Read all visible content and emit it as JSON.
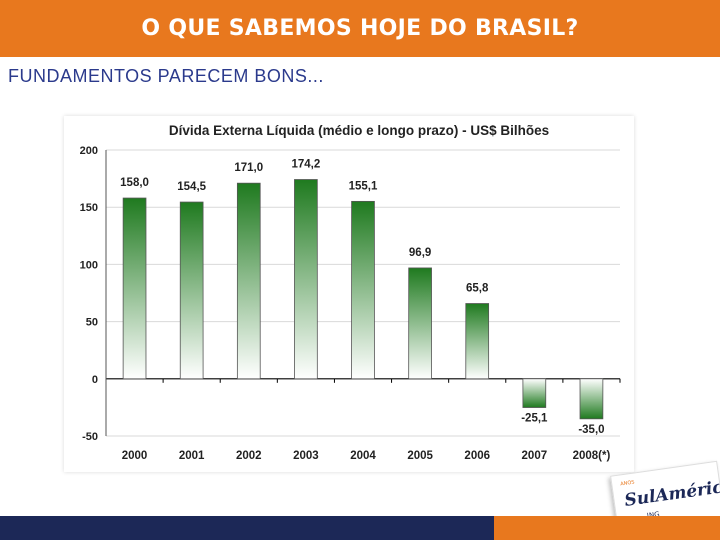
{
  "header": {
    "title": "O QUE SABEMOS HOJE DO BRASIL?"
  },
  "subtitle": "FUNDAMENTOS PARECEM BONS...",
  "colors": {
    "accent_orange": "#e8781e",
    "footer_blue": "#1c2857",
    "bar_green": "#1f7a1f"
  },
  "logo": {
    "small": "ANOS",
    "main": "SulAmérica",
    "sub": "ING"
  },
  "chart_data": {
    "type": "bar",
    "title": "Dívida Externa Líquida (médio e longo prazo) - US$ Bilhões",
    "categories": [
      "2000",
      "2001",
      "2002",
      "2003",
      "2004",
      "2005",
      "2006",
      "2007",
      "2008(*)"
    ],
    "values": [
      158.0,
      154.5,
      171.0,
      174.2,
      155.1,
      96.9,
      65.8,
      -25.1,
      -35.0
    ],
    "value_labels": [
      "158,0",
      "154,5",
      "171,0",
      "174,2",
      "155,1",
      "96,9",
      "65,8",
      "-25,1",
      "-35,0"
    ],
    "ylim": [
      -50,
      200
    ],
    "yticks": [
      200,
      150,
      100,
      50,
      0,
      -50
    ],
    "xlabel": "",
    "ylabel": "",
    "grid": true
  }
}
